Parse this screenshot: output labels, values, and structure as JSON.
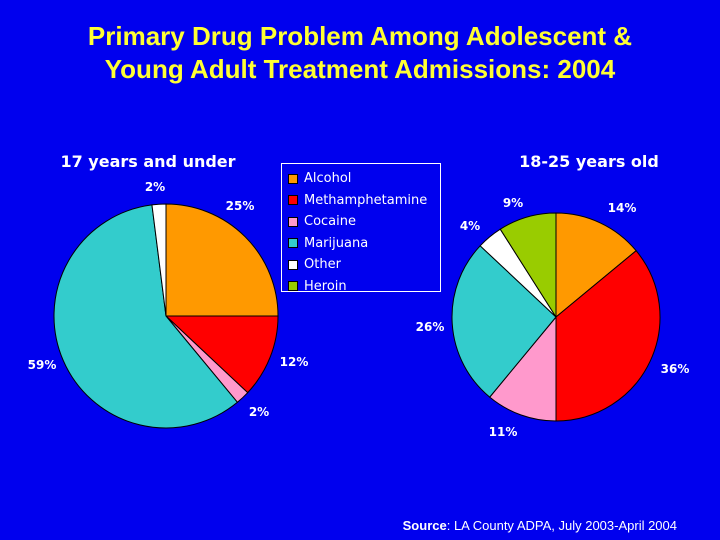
{
  "title": {
    "line1": "Primary Drug Problem Among Adolescent &",
    "line2": "Young Adult Treatment Admissions: 2004"
  },
  "colors": {
    "background": "#0000ee",
    "title": "#ffff33",
    "Alcohol": "#ff9900",
    "Methamphetamine": "#ff0000",
    "Cocaine": "#ff99cc",
    "Marijuana": "#33cccc",
    "Other": "#ffffff",
    "Heroin": "#99cc00"
  },
  "legend": [
    "Alcohol",
    "Methamphetamine",
    "Cocaine",
    "Marijuana",
    "Other",
    "Heroin"
  ],
  "chart_data": [
    {
      "type": "pie",
      "title": "17 years and under",
      "categories": [
        "Alcohol",
        "Methamphetamine",
        "Cocaine",
        "Marijuana",
        "Other"
      ],
      "values": [
        25,
        12,
        2,
        59,
        2
      ],
      "labels": [
        "25%",
        "12%",
        "2%",
        "59%",
        "2%"
      ],
      "legend_position": "right"
    },
    {
      "type": "pie",
      "title": "18-25 years old",
      "categories": [
        "Alcohol",
        "Methamphetamine",
        "Cocaine",
        "Marijuana",
        "Other",
        "Heroin"
      ],
      "values": [
        14,
        36,
        11,
        26,
        4,
        9
      ],
      "labels": [
        "14%",
        "36%",
        "11%",
        "26%",
        "4%",
        "9%"
      ]
    }
  ],
  "source": {
    "label": "Source",
    "text": ": LA County ADPA, July 2003-April 2004"
  }
}
